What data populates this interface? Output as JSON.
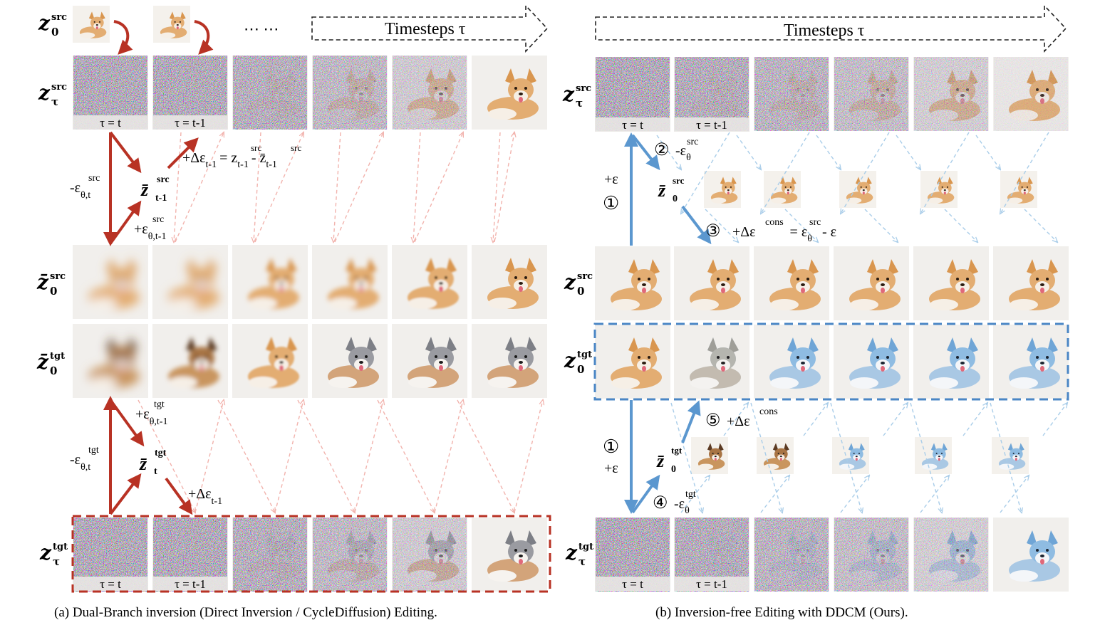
{
  "captions": {
    "left": "(a) Dual-Branch inversion (Direct Inversion / CycleDiffusion) Editing.",
    "right": "(b) Inversion-free Editing with DDCM (Ours)."
  },
  "timesteps_label": "Timesteps τ",
  "dots": "⋯ ⋯",
  "tau_labels": [
    "τ = t",
    "τ = t-1"
  ],
  "left_panel": {
    "row_labels": {
      "z0_src": {
        "base": "z",
        "sup": "src",
        "sub": "0"
      },
      "ztau_src": {
        "base": "z",
        "sup": "src",
        "sub": "τ"
      },
      "z0bar_src": {
        "base": "z̄",
        "sup": "src",
        "sub": "0"
      },
      "z0bar_tgt": {
        "base": "z̄",
        "sup": "tgt",
        "sub": "0"
      },
      "ztau_tgt": {
        "base": "z",
        "sup": "tgt",
        "sub": "τ"
      }
    },
    "annotations": {
      "eps_src": "-ε",
      "eps_src_sub": "θ,t",
      "eps_src_sup": "src",
      "zbar_t1": "z̄",
      "zbar_t1_sup": "src",
      "zbar_t1_sub": "t-1",
      "eps_src_next": "+ε",
      "eps_src_next_sub": "θ,t-1",
      "eps_src_next_sup": "src",
      "delta_eq": "+Δε",
      "delta_eq_sub": "t-1",
      "delta_eq_rhs": "= z",
      "delta_eq_rhs_sub": "t-1",
      "delta_eq_rhs_sup": "src",
      "delta_eq_minus": "- z̄",
      "delta_eq_minus_sub": "t-1",
      "delta_eq_minus_sup": "src",
      "eps_tgt_next": "+ε",
      "eps_tgt_next_sub": "θ,t-1",
      "eps_tgt_next_sup": "tgt",
      "eps_tgt": "-ε",
      "eps_tgt_sub": "θ,t",
      "eps_tgt_sup": "tgt",
      "zbar_t": "z̄",
      "zbar_t_sup": "tgt",
      "zbar_t_sub": "t",
      "delta_t1": "+Δε",
      "delta_t1_sub": "t-1"
    }
  },
  "right_panel": {
    "row_labels": {
      "ztau_src": {
        "base": "z",
        "sup": "src",
        "sub": "τ"
      },
      "z0bar_src": {
        "base": "z̄",
        "sup": "src",
        "sub": "0"
      },
      "z0_src": {
        "base": "z",
        "sup": "src",
        "sub": "0"
      },
      "z0_tgt": {
        "base": "z",
        "sup": "tgt",
        "sub": "0"
      },
      "z0bar_tgt": {
        "base": "z̄",
        "sup": "tgt",
        "sub": "0"
      },
      "ztau_tgt": {
        "base": "z",
        "sup": "tgt",
        "sub": "τ"
      }
    },
    "annotations": {
      "plus_eps": "+ε",
      "step1": "①",
      "step2": "②",
      "step2_text": "-ε",
      "step2_sub": "θ",
      "step2_sup": "src",
      "step3": "③",
      "step3_text": "+Δε",
      "step3_sup": "cons",
      "step3_eq": "= ε",
      "step3_eq_sub": "θ",
      "step3_eq_sup": "src",
      "step3_tail": "- ε",
      "step4": "④",
      "step4_text": "-ε",
      "step4_sub": "θ",
      "step4_sup": "tgt",
      "step5": "⑤",
      "step5_text": "+Δε",
      "step5_sup": "cons"
    }
  },
  "colors": {
    "red_arrow": "#b83224",
    "red_dashed": "#f2b3ad",
    "blue_arrow": "#5b97cf",
    "blue_dashed": "#a9cde9",
    "dog_orange": "#dca36a",
    "dog_white": "#f6efe6",
    "dog_blue": "#8fb9dc",
    "bg_soft": "#f1efec"
  }
}
